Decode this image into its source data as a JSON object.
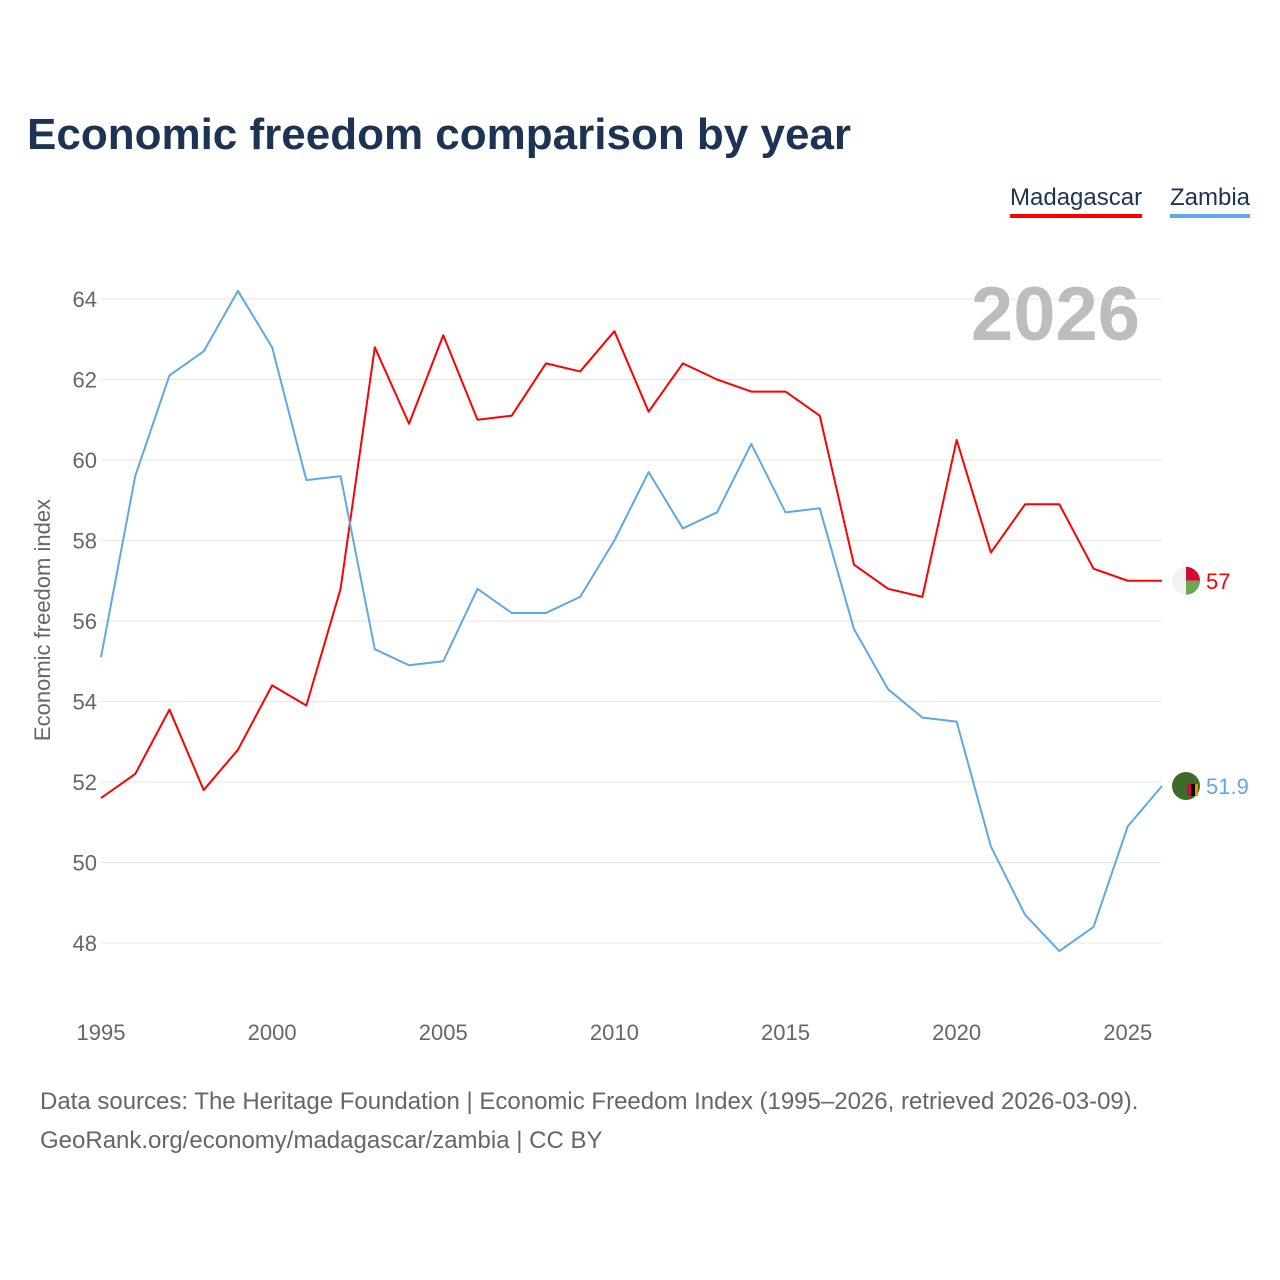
{
  "title": "Economic freedom comparison by year",
  "footer": {
    "line1": "Data sources: The Heritage Foundation | Economic Freedom Index (1995–2026, retrieved 2026-03-09).",
    "line2": "GeoRank.org/economy/madagascar/zambia | CC BY"
  },
  "chart_data": {
    "type": "line",
    "title": "Economic freedom comparison by year",
    "xlabel": "",
    "ylabel": "Economic freedom index",
    "year_watermark": "2026",
    "xlim": [
      1995,
      2026
    ],
    "ylim": [
      47,
      64.5
    ],
    "x_ticks": [
      1995,
      2000,
      2005,
      2010,
      2015,
      2020,
      2025
    ],
    "y_ticks": [
      48,
      50,
      52,
      54,
      56,
      58,
      60,
      62,
      64
    ],
    "grid": true,
    "legend_position": "top-right",
    "x": [
      1995,
      1996,
      1997,
      1998,
      1999,
      2000,
      2001,
      2002,
      2003,
      2004,
      2005,
      2006,
      2007,
      2008,
      2009,
      2010,
      2011,
      2012,
      2013,
      2014,
      2015,
      2016,
      2017,
      2018,
      2019,
      2020,
      2021,
      2022,
      2023,
      2024,
      2025,
      2026
    ],
    "series": [
      {
        "name": "Madagascar",
        "color": "#ff0000",
        "end_label": "57",
        "values": [
          51.6,
          52.2,
          53.8,
          51.8,
          52.8,
          54.4,
          53.9,
          56.8,
          62.8,
          60.9,
          63.1,
          61.0,
          61.1,
          62.4,
          62.2,
          63.2,
          61.2,
          62.4,
          62.0,
          61.7,
          61.7,
          61.1,
          57.4,
          56.8,
          56.6,
          60.5,
          57.7,
          58.9,
          58.9,
          57.3,
          57.0,
          57.0
        ]
      },
      {
        "name": "Zambia",
        "color": "#5fa8e8",
        "end_label": "51.9",
        "values": [
          55.1,
          59.6,
          62.1,
          62.7,
          64.2,
          62.8,
          59.5,
          59.6,
          55.3,
          54.9,
          55.0,
          56.8,
          56.2,
          56.2,
          56.6,
          58.0,
          59.7,
          58.3,
          58.7,
          60.4,
          58.7,
          58.8,
          55.8,
          54.3,
          53.6,
          53.5,
          50.4,
          48.7,
          47.8,
          48.4,
          50.9,
          51.9
        ]
      }
    ]
  }
}
